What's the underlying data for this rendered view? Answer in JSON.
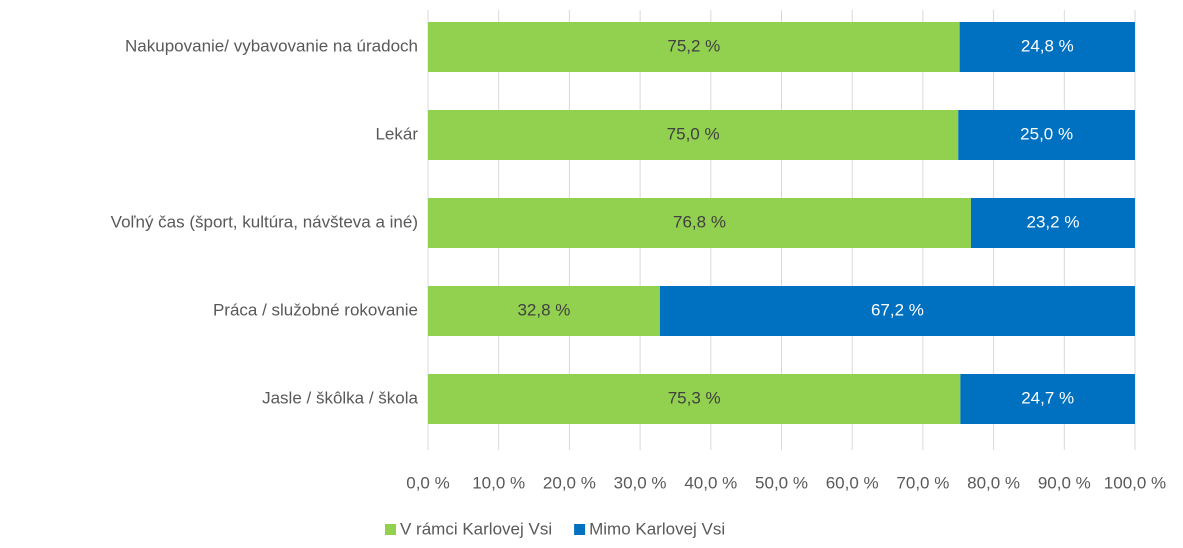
{
  "chart_data": {
    "type": "stacked-barh",
    "categories": [
      "Nakupovanie/ vybavovanie na úradoch",
      "Lekár",
      "Voľný čas (šport, kultúra, návšteva a iné)",
      "Práca / služobné rokovanie",
      "Jasle / škôlka / škola"
    ],
    "series": [
      {
        "name": "V rámci Karlovej Vsi",
        "color": "#92d050",
        "values": [
          75.2,
          75.0,
          76.8,
          32.8,
          75.3
        ],
        "value_labels": [
          "75,2 %",
          "75,0 %",
          "76,8 %",
          "32,8 %",
          "75,3 %"
        ]
      },
      {
        "name": "Mimo Karlovej Vsi",
        "color": "#0070c0",
        "values": [
          24.8,
          25.0,
          23.2,
          67.2,
          24.7
        ],
        "value_labels": [
          "24,8 %",
          "25,0 %",
          "23,2 %",
          "67,2 %",
          "24,7 %"
        ]
      }
    ],
    "xlim": [
      0,
      100
    ],
    "xticks": [
      {
        "value": 0,
        "label": "0,0 %"
      },
      {
        "value": 10,
        "label": "10,0 %"
      },
      {
        "value": 20,
        "label": "20,0 %"
      },
      {
        "value": 30,
        "label": "30,0 %"
      },
      {
        "value": 40,
        "label": "40,0 %"
      },
      {
        "value": 50,
        "label": "50,0 %"
      },
      {
        "value": 60,
        "label": "60,0 %"
      },
      {
        "value": 70,
        "label": "70,0 %"
      },
      {
        "value": 80,
        "label": "80,0 %"
      },
      {
        "value": 90,
        "label": "90,0 %"
      },
      {
        "value": 100,
        "label": "100,0 %"
      }
    ],
    "grid": true,
    "legend": "bottom"
  }
}
